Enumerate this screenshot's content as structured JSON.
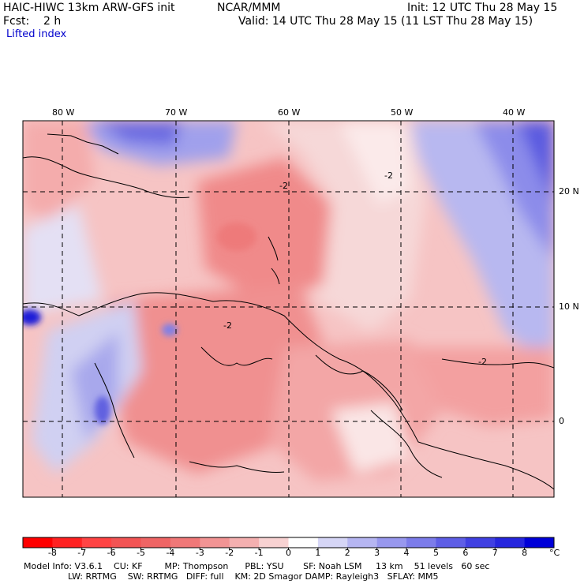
{
  "header": {
    "model": "HAIC-HIWC 13km ARW-GFS init",
    "org": "NCAR/MMM",
    "init": "Init: 12 UTC Thu 28 May 15",
    "fcst": "Fcst:    2 h",
    "valid": "Valid: 14 UTC Thu 28 May 15 (11 LST Thu 28 May 15)",
    "field": "Lifted index"
  },
  "map": {
    "lon_labels": [
      "80 W",
      "70 W",
      "60 W",
      "50 W",
      "40 W"
    ],
    "lat_labels": [
      "20 N",
      "10 N",
      "0"
    ],
    "contour_label": "-2",
    "colors": {
      "neg_strong": "#ff0000",
      "neg_mid": "#f07070",
      "neg_light": "#f4b4b4",
      "pos_light": "#c8c8f4",
      "pos_mid": "#8080ee",
      "pos_strong": "#1010dd"
    }
  },
  "colorbar": {
    "ticks": [
      "-8",
      "-7",
      "-6",
      "-5",
      "-4",
      "-3",
      "-2",
      "-1",
      "0",
      "1",
      "2",
      "3",
      "4",
      "5",
      "6",
      "7",
      "8"
    ],
    "unit": "°C",
    "colors": [
      "#ff0000",
      "#ff2222",
      "#ff4444",
      "#f25454",
      "#ef6565",
      "#f07878",
      "#f29494",
      "#f4b0b0",
      "#f8d2d2",
      "#ffffff",
      "#d6d6f6",
      "#b6b6f2",
      "#9898ee",
      "#7c7cea",
      "#5e5ee6",
      "#4040e2",
      "#2626de",
      "#0000d8"
    ]
  },
  "footer": {
    "line1": "Model Info: V3.6.1    CU: KF        MP: Thompson      PBL: YSU       SF: Noah LSM     13 km    51 levels   60 sec",
    "line2": "                LW: RRTMG    SW: RRTMG   DIFF: full    KM: 2D Smagor DAMP: Rayleigh3   SFLAY: MM5"
  }
}
